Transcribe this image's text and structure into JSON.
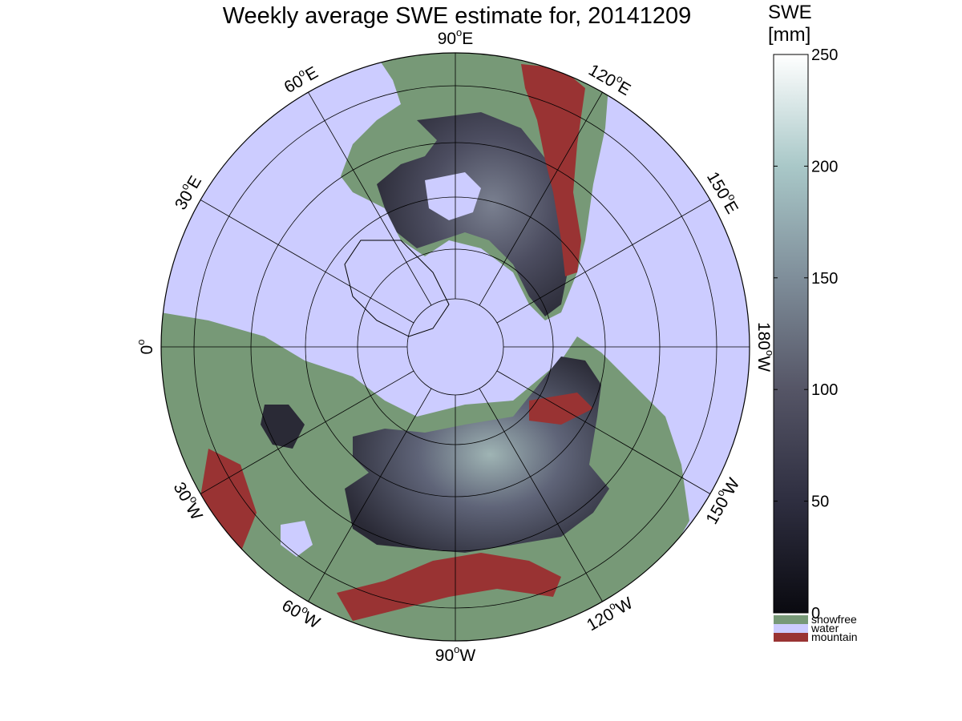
{
  "title": "Weekly average SWE estimate for, 20141209",
  "colorbar": {
    "title_line1": "SWE",
    "title_line2": "[mm]",
    "ticks": [
      "0",
      "50",
      "100",
      "150",
      "200",
      "250"
    ],
    "tick_values": [
      0,
      50,
      100,
      150,
      200,
      250
    ],
    "range": [
      0,
      250
    ],
    "categories": [
      {
        "label": "snowfree",
        "color": "#779977"
      },
      {
        "label": "water",
        "color": "#ccccff"
      },
      {
        "label": "mountain",
        "color": "#993333"
      }
    ],
    "gradient_colors": [
      "#0a0a10",
      "#2e2e40",
      "#555566",
      "#7f8e9a",
      "#a9c8c8",
      "#ffffff"
    ]
  },
  "map": {
    "projection": "north-polar-stereographic",
    "longitude_labels": [
      {
        "text": "90",
        "hemi": "W",
        "lon": -90
      },
      {
        "text": "120",
        "hemi": "W",
        "lon": -120
      },
      {
        "text": "150",
        "hemi": "W",
        "lon": -150
      },
      {
        "text": "180",
        "hemi": "W",
        "lon": 180
      },
      {
        "text": "150",
        "hemi": "E",
        "lon": 150
      },
      {
        "text": "120",
        "hemi": "E",
        "lon": 120
      },
      {
        "text": "90",
        "hemi": "E",
        "lon": 90
      },
      {
        "text": "60",
        "hemi": "E",
        "lon": 60
      },
      {
        "text": "30",
        "hemi": "E",
        "lon": 30
      },
      {
        "text": "0",
        "hemi": "",
        "lon": 0
      },
      {
        "text": "30",
        "hemi": "W",
        "lon": -30
      },
      {
        "text": "60",
        "hemi": "W",
        "lon": -60
      }
    ],
    "colors": {
      "ocean": "#ccccff",
      "land": "#779977",
      "mountain": "#993333",
      "snow_dark": "#2a2a36",
      "snow_mid": "#55566a",
      "snow_light": "#8ea0a6",
      "grid": "#000000"
    }
  }
}
